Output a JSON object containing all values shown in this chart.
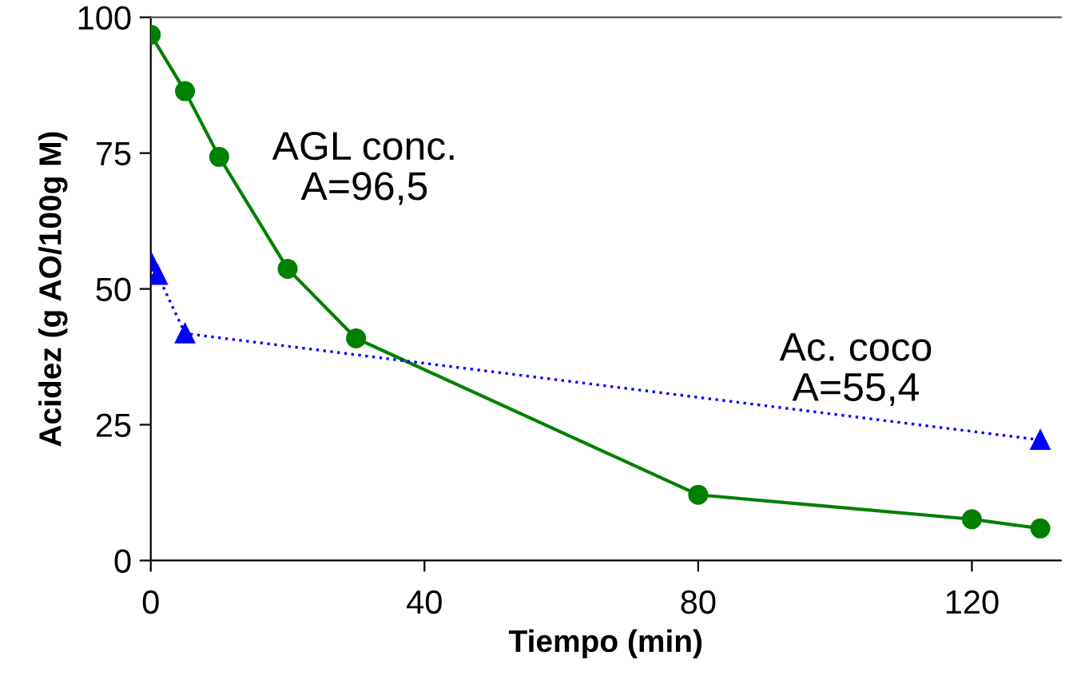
{
  "chart_data": {
    "type": "line",
    "xlabel": "Tiempo (min)",
    "ylabel": "Acidez (g AO/100g M)",
    "xlim": [
      0,
      133
    ],
    "ylim": [
      0,
      100
    ],
    "xticks": [
      0,
      40,
      80,
      120
    ],
    "yticks": [
      0,
      25,
      50,
      75,
      100
    ],
    "grid": false,
    "series": [
      {
        "color": "#008000",
        "marker": "circle",
        "line_style": "solid",
        "x": [
          0,
          5,
          10,
          20,
          30,
          80,
          120,
          130
        ],
        "values": [
          96.8,
          86.4,
          74.3,
          53.7,
          40.9,
          12.1,
          7.6,
          5.9
        ]
      },
      {
        "color": "#0000ff",
        "marker": "triangle",
        "line_style": "dotted",
        "x": [
          0,
          1,
          5,
          130
        ],
        "values": [
          55.0,
          52.6,
          41.8,
          22.2
        ]
      }
    ],
    "annotations": [
      "AGL conc.\nA=96,5",
      "Ac. coco\nA=55,4"
    ]
  }
}
